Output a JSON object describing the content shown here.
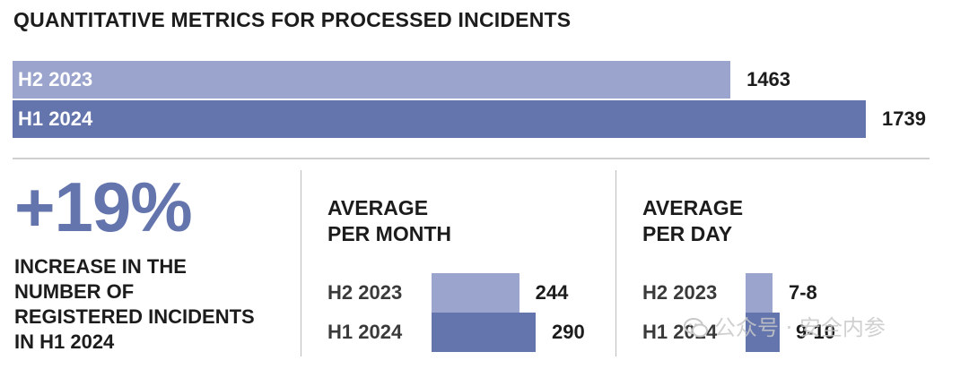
{
  "title": "QUANTITATIVE METRICS FOR PROCESSED INCIDENTS",
  "colors": {
    "light_bar": "#9aa4cc",
    "dark_bar": "#6475ad"
  },
  "chart_data": [
    {
      "type": "bar",
      "orientation": "horizontal",
      "title": "QUANTITATIVE METRICS FOR PROCESSED INCIDENTS",
      "categories": [
        "H2 2023",
        "H1 2024"
      ],
      "values": [
        1463,
        1739
      ],
      "value_labels": [
        "1463",
        "1739"
      ]
    },
    {
      "type": "bar",
      "orientation": "horizontal",
      "title": "AVERAGE\nPER MONTH",
      "categories": [
        "H2 2023",
        "H1 2024"
      ],
      "values": [
        244,
        290
      ],
      "value_labels": [
        "244",
        "290"
      ]
    },
    {
      "type": "bar",
      "orientation": "horizontal",
      "title": "AVERAGE\nPER DAY",
      "categories": [
        "H2 2023",
        "H1 2024"
      ],
      "values": [
        7.5,
        9.5
      ],
      "value_labels": [
        "7-8",
        "9-10"
      ]
    }
  ],
  "highlight": {
    "value": "+19%",
    "description": "INCREASE IN THE\nNUMBER OF\nREGISTERED INCIDENTS\nIN H1 2024"
  },
  "watermark": {
    "icon": "wechat-icon",
    "text": "公众号 · 安全内参"
  }
}
